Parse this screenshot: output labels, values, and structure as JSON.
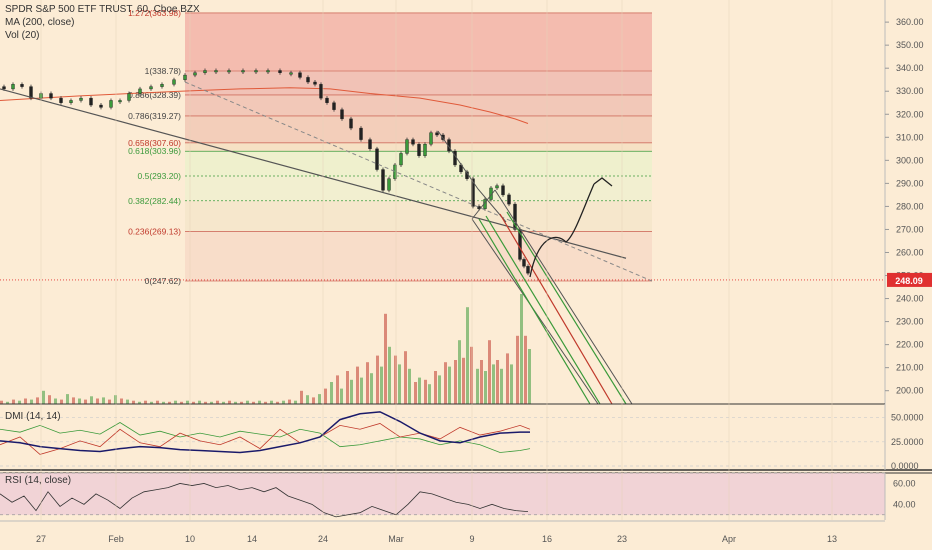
{
  "header": {
    "symbol_line": "SPDR S&P 500 ETF TRUST, 60, Cboe BZX",
    "ma_label": "MA (200, close)",
    "vol_label": "Vol (20)"
  },
  "panels": {
    "dmi_label": "DMI (14, 14)",
    "rsi_label": "RSI (14, close)"
  },
  "colors": {
    "background": "#fcecd5",
    "up": "#3a9a3a",
    "down": "#c0392b",
    "ma": "#e05a3a",
    "price_tag": "#e03030",
    "fib_red_zone": "#f3b7aa",
    "fib_green_zone": "#eaf0c7",
    "rsi_band": "#efcfd6"
  },
  "chart_data": {
    "type": "candlestick",
    "price_axis": {
      "labels": [
        "360.00",
        "350.00",
        "340.00",
        "330.00",
        "320.00",
        "310.00",
        "300.00",
        "290.00",
        "280.00",
        "270.00",
        "260.00",
        "250.00",
        "240.00",
        "230.00",
        "220.00",
        "210.00",
        "200.00"
      ],
      "ylim": [
        195,
        367
      ]
    },
    "last_price": "248.09",
    "fib_levels": [
      {
        "ratio": "1.272",
        "price": 363.98,
        "label": "1.272(363.98)"
      },
      {
        "ratio": "1",
        "price": 338.78,
        "label": "1(338.78)"
      },
      {
        "ratio": "0.886",
        "price": 328.39,
        "label": "0.886(328.39)"
      },
      {
        "ratio": "0.786",
        "price": 319.27,
        "label": "0.786(319.27)"
      },
      {
        "ratio": "0.658",
        "price": 307.6,
        "label": "0.658(307.60)"
      },
      {
        "ratio": "0.618",
        "price": 303.96,
        "label": "0.618(303.96)"
      },
      {
        "ratio": "0.5",
        "price": 293.2,
        "label": "0.5(293.20)"
      },
      {
        "ratio": "0.382",
        "price": 282.44,
        "label": "0.382(282.44)"
      },
      {
        "ratio": "0.236",
        "price": 269.13,
        "label": "0.236(269.13)"
      },
      {
        "ratio": "0",
        "price": 247.62,
        "label": "0(247.62)"
      }
    ],
    "x_axis": {
      "labels": [
        "27",
        "Feb",
        "10",
        "24",
        "Mar",
        "9",
        "16",
        "23",
        "Apr",
        "13"
      ]
    },
    "dmi_axis": [
      "50.0000",
      "25.0000",
      "0.0000"
    ],
    "rsi_axis": [
      "60.00",
      "40.00"
    ],
    "price_path": [
      [
        0,
        332
      ],
      [
        8,
        331
      ],
      [
        18,
        333
      ],
      [
        26,
        332
      ],
      [
        36,
        327
      ],
      [
        46,
        329
      ],
      [
        56,
        327
      ],
      [
        66,
        325
      ],
      [
        76,
        326
      ],
      [
        86,
        327
      ],
      [
        96,
        324
      ],
      [
        106,
        323
      ],
      [
        116,
        326
      ],
      [
        124,
        326
      ],
      [
        134,
        329
      ],
      [
        146,
        331
      ],
      [
        156,
        332
      ],
      [
        168,
        333
      ],
      [
        180,
        335
      ],
      [
        190,
        337
      ],
      [
        200,
        338
      ],
      [
        210,
        339
      ],
      [
        222,
        339
      ],
      [
        236,
        339
      ],
      [
        250,
        339
      ],
      [
        262,
        339
      ],
      [
        274,
        339
      ],
      [
        286,
        338
      ],
      [
        296,
        338
      ],
      [
        304,
        336
      ],
      [
        312,
        334
      ],
      [
        318,
        333
      ],
      [
        324,
        327
      ],
      [
        330,
        325
      ],
      [
        338,
        322
      ],
      [
        346,
        318
      ],
      [
        356,
        314
      ],
      [
        366,
        309
      ],
      [
        374,
        305
      ],
      [
        380,
        296
      ],
      [
        386,
        287
      ],
      [
        392,
        292
      ],
      [
        398,
        298
      ],
      [
        404,
        303
      ],
      [
        410,
        309
      ],
      [
        416,
        307
      ],
      [
        422,
        302
      ],
      [
        428,
        307
      ],
      [
        434,
        312
      ],
      [
        440,
        311
      ],
      [
        446,
        309
      ],
      [
        452,
        304
      ],
      [
        458,
        298
      ],
      [
        464,
        295
      ],
      [
        470,
        292
      ],
      [
        476,
        280
      ],
      [
        482,
        279
      ],
      [
        488,
        283
      ],
      [
        494,
        288
      ],
      [
        500,
        289
      ],
      [
        506,
        285
      ],
      [
        512,
        281
      ],
      [
        518,
        270
      ],
      [
        522,
        257
      ],
      [
        526,
        254
      ],
      [
        530,
        251
      ]
    ],
    "volume_bars": [
      [
        0,
        3
      ],
      [
        6,
        2
      ],
      [
        12,
        4
      ],
      [
        18,
        3
      ],
      [
        24,
        5
      ],
      [
        30,
        4
      ],
      [
        36,
        6
      ],
      [
        42,
        12
      ],
      [
        48,
        8
      ],
      [
        54,
        5
      ],
      [
        60,
        4
      ],
      [
        66,
        9
      ],
      [
        72,
        6
      ],
      [
        78,
        5
      ],
      [
        84,
        4
      ],
      [
        90,
        7
      ],
      [
        96,
        5
      ],
      [
        102,
        6
      ],
      [
        108,
        4
      ],
      [
        114,
        8
      ],
      [
        120,
        5
      ],
      [
        126,
        4
      ],
      [
        132,
        3
      ],
      [
        138,
        2
      ],
      [
        144,
        3
      ],
      [
        150,
        2
      ],
      [
        156,
        3
      ],
      [
        162,
        2
      ],
      [
        168,
        2
      ],
      [
        174,
        3
      ],
      [
        180,
        2
      ],
      [
        186,
        3
      ],
      [
        192,
        2
      ],
      [
        198,
        3
      ],
      [
        204,
        2
      ],
      [
        210,
        2
      ],
      [
        216,
        3
      ],
      [
        222,
        2
      ],
      [
        228,
        3
      ],
      [
        234,
        2
      ],
      [
        240,
        2
      ],
      [
        246,
        3
      ],
      [
        252,
        2
      ],
      [
        258,
        3
      ],
      [
        264,
        2
      ],
      [
        270,
        3
      ],
      [
        276,
        2
      ],
      [
        282,
        3
      ],
      [
        288,
        4
      ],
      [
        294,
        3
      ],
      [
        300,
        12
      ],
      [
        306,
        8
      ],
      [
        312,
        6
      ],
      [
        318,
        9
      ],
      [
        324,
        14
      ],
      [
        330,
        20
      ],
      [
        336,
        26
      ],
      [
        340,
        14
      ],
      [
        346,
        30
      ],
      [
        350,
        22
      ],
      [
        356,
        34
      ],
      [
        360,
        24
      ],
      [
        366,
        38
      ],
      [
        370,
        28
      ],
      [
        376,
        44
      ],
      [
        380,
        34
      ],
      [
        384,
        82
      ],
      [
        388,
        52
      ],
      [
        394,
        44
      ],
      [
        398,
        36
      ],
      [
        404,
        48
      ],
      [
        408,
        32
      ],
      [
        414,
        20
      ],
      [
        418,
        24
      ],
      [
        424,
        22
      ],
      [
        428,
        18
      ],
      [
        434,
        30
      ],
      [
        438,
        26
      ],
      [
        444,
        38
      ],
      [
        448,
        34
      ],
      [
        454,
        40
      ],
      [
        458,
        58
      ],
      [
        462,
        42
      ],
      [
        466,
        88
      ],
      [
        470,
        52
      ],
      [
        476,
        32
      ],
      [
        480,
        40
      ],
      [
        484,
        30
      ],
      [
        488,
        58
      ],
      [
        492,
        36
      ],
      [
        496,
        40
      ],
      [
        500,
        32
      ],
      [
        506,
        46
      ],
      [
        510,
        36
      ],
      [
        516,
        62
      ],
      [
        520,
        100
      ],
      [
        524,
        62
      ],
      [
        528,
        50
      ]
    ],
    "ma_200": [
      [
        0,
        326
      ],
      [
        40,
        327
      ],
      [
        80,
        328
      ],
      [
        130,
        329
      ],
      [
        180,
        330
      ],
      [
        240,
        331
      ],
      [
        290,
        331.5
      ],
      [
        330,
        331
      ],
      [
        370,
        329
      ],
      [
        420,
        327
      ],
      [
        460,
        324
      ],
      [
        490,
        321
      ],
      [
        515,
        318
      ],
      [
        528,
        316
      ]
    ],
    "dmi_plus": [
      [
        0,
        38
      ],
      [
        20,
        35
      ],
      [
        40,
        42
      ],
      [
        60,
        34
      ],
      [
        80,
        37
      ],
      [
        100,
        33
      ],
      [
        120,
        45
      ],
      [
        140,
        32
      ],
      [
        160,
        36
      ],
      [
        180,
        30
      ],
      [
        200,
        34
      ],
      [
        220,
        30
      ],
      [
        240,
        36
      ],
      [
        260,
        33
      ],
      [
        280,
        30
      ],
      [
        300,
        38
      ],
      [
        320,
        34
      ],
      [
        340,
        20
      ],
      [
        360,
        22
      ],
      [
        380,
        26
      ],
      [
        400,
        30
      ],
      [
        420,
        28
      ],
      [
        440,
        22
      ],
      [
        460,
        26
      ],
      [
        480,
        22
      ],
      [
        500,
        14
      ],
      [
        520,
        16
      ],
      [
        530,
        18
      ]
    ],
    "dmi_minus": [
      [
        0,
        22
      ],
      [
        20,
        30
      ],
      [
        40,
        12
      ],
      [
        60,
        18
      ],
      [
        80,
        26
      ],
      [
        100,
        20
      ],
      [
        120,
        38
      ],
      [
        140,
        24
      ],
      [
        160,
        20
      ],
      [
        180,
        34
      ],
      [
        200,
        26
      ],
      [
        220,
        22
      ],
      [
        240,
        30
      ],
      [
        260,
        18
      ],
      [
        280,
        38
      ],
      [
        300,
        24
      ],
      [
        320,
        30
      ],
      [
        340,
        42
      ],
      [
        360,
        38
      ],
      [
        380,
        44
      ],
      [
        400,
        30
      ],
      [
        420,
        34
      ],
      [
        440,
        28
      ],
      [
        460,
        40
      ],
      [
        480,
        32
      ],
      [
        500,
        36
      ],
      [
        520,
        42
      ],
      [
        530,
        38
      ]
    ],
    "adx": [
      [
        0,
        26
      ],
      [
        20,
        24
      ],
      [
        40,
        20
      ],
      [
        60,
        18
      ],
      [
        80,
        16
      ],
      [
        100,
        15
      ],
      [
        120,
        18
      ],
      [
        140,
        20
      ],
      [
        160,
        19
      ],
      [
        180,
        17
      ],
      [
        200,
        16
      ],
      [
        220,
        15
      ],
      [
        240,
        14
      ],
      [
        260,
        16
      ],
      [
        280,
        20
      ],
      [
        300,
        24
      ],
      [
        320,
        30
      ],
      [
        340,
        48
      ],
      [
        360,
        54
      ],
      [
        380,
        56
      ],
      [
        400,
        46
      ],
      [
        420,
        34
      ],
      [
        440,
        26
      ],
      [
        460,
        24
      ],
      [
        480,
        30
      ],
      [
        500,
        34
      ],
      [
        520,
        35
      ],
      [
        530,
        35
      ]
    ],
    "rsi": [
      [
        0,
        50
      ],
      [
        12,
        42
      ],
      [
        24,
        48
      ],
      [
        36,
        34
      ],
      [
        48,
        52
      ],
      [
        60,
        38
      ],
      [
        72,
        46
      ],
      [
        84,
        40
      ],
      [
        96,
        50
      ],
      [
        108,
        44
      ],
      [
        120,
        36
      ],
      [
        132,
        46
      ],
      [
        144,
        52
      ],
      [
        156,
        54
      ],
      [
        168,
        56
      ],
      [
        180,
        60
      ],
      [
        192,
        58
      ],
      [
        204,
        60
      ],
      [
        216,
        56
      ],
      [
        228,
        58
      ],
      [
        240,
        54
      ],
      [
        252,
        56
      ],
      [
        264,
        52
      ],
      [
        276,
        56
      ],
      [
        288,
        48
      ],
      [
        300,
        44
      ],
      [
        312,
        40
      ],
      [
        324,
        32
      ],
      [
        336,
        28
      ],
      [
        348,
        30
      ],
      [
        360,
        32
      ],
      [
        372,
        38
      ],
      [
        384,
        34
      ],
      [
        396,
        30
      ],
      [
        408,
        40
      ],
      [
        420,
        52
      ],
      [
        432,
        50
      ],
      [
        444,
        46
      ],
      [
        456,
        42
      ],
      [
        468,
        40
      ],
      [
        480,
        36
      ],
      [
        492,
        40
      ],
      [
        504,
        36
      ],
      [
        516,
        34
      ],
      [
        528,
        33
      ]
    ]
  }
}
